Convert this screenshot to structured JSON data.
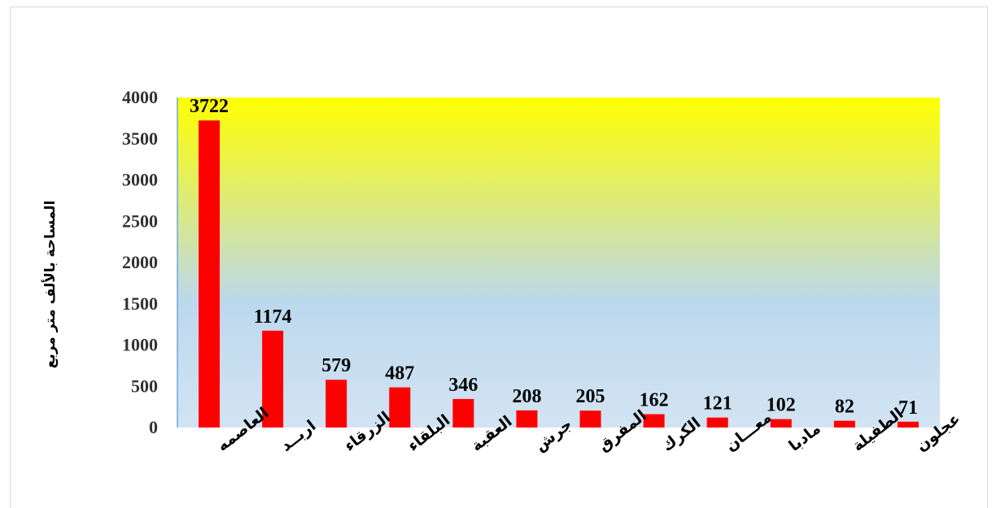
{
  "chart_data": {
    "type": "bar",
    "title": "",
    "xlabel": "",
    "ylabel": "المساحة بالألف متر مربع",
    "categories": [
      "العاصمه",
      "اربــد",
      "الزرقاء",
      "البلقاء",
      "العقبة",
      "جرش",
      "المفرق",
      "الكرك",
      "معـــان",
      "مادبا",
      "الطفيلة",
      "عجلون"
    ],
    "values": [
      3722,
      1174,
      579,
      487,
      346,
      208,
      205,
      162,
      121,
      102,
      82,
      71
    ],
    "ylim": [
      0,
      4000
    ],
    "yticks": [
      "0",
      "500",
      "1000",
      "1500",
      "2000",
      "2500",
      "3000",
      "3500",
      "4000"
    ],
    "grid": false,
    "legend": "none",
    "data_labels": true,
    "colors": {
      "bar": "#ff0000",
      "plot_top": "#ffff00",
      "plot_middle": "#bcd8ee",
      "plot_bottom": "#d2e4f3",
      "axis": "#6fa8dc"
    }
  }
}
